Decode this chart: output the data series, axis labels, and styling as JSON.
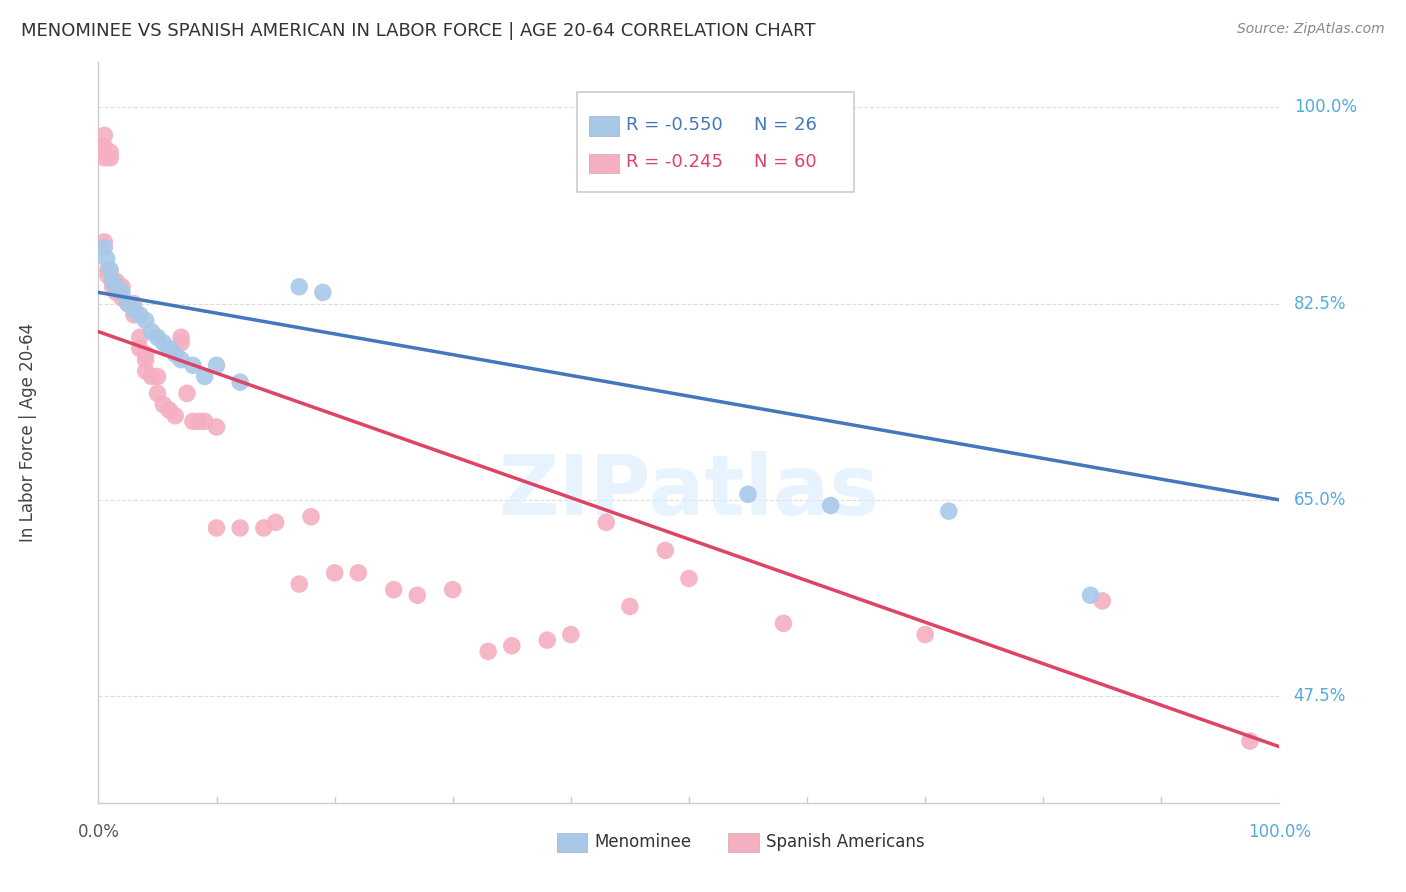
{
  "title": "MENOMINEE VS SPANISH AMERICAN IN LABOR FORCE | AGE 20-64 CORRELATION CHART",
  "source": "Source: ZipAtlas.com",
  "ylabel": "In Labor Force | Age 20-64",
  "right_yticks": [
    "100.0%",
    "82.5%",
    "65.0%",
    "47.5%"
  ],
  "right_ytick_vals": [
    1.0,
    0.825,
    0.65,
    0.475
  ],
  "legend_blue_label": "Menominee",
  "legend_pink_label": "Spanish Americans",
  "legend_blue_R": "R = -0.550",
  "legend_blue_N": "N = 26",
  "legend_pink_R": "R = -0.245",
  "legend_pink_N": "N = 60",
  "blue_color": "#a8c8e8",
  "pink_color": "#f4b0c0",
  "blue_line_color": "#4477bb",
  "pink_line_color": "#dd4466",
  "watermark": "ZIPatlas",
  "blue_line_x0": 0.0,
  "blue_line_y0": 0.835,
  "blue_line_x1": 1.0,
  "blue_line_y1": 0.65,
  "pink_line_x0": 0.0,
  "pink_line_y0": 0.8,
  "pink_line_x1": 1.0,
  "pink_line_y1": 0.43,
  "blue_x": [
    0.005,
    0.007,
    0.01,
    0.012,
    0.015,
    0.02,
    0.025,
    0.03,
    0.035,
    0.04,
    0.045,
    0.05,
    0.055,
    0.06,
    0.065,
    0.07,
    0.08,
    0.09,
    0.1,
    0.12,
    0.17,
    0.19,
    0.55,
    0.62,
    0.72,
    0.84
  ],
  "blue_y": [
    0.875,
    0.865,
    0.855,
    0.845,
    0.84,
    0.835,
    0.825,
    0.82,
    0.815,
    0.81,
    0.8,
    0.795,
    0.79,
    0.785,
    0.78,
    0.775,
    0.77,
    0.76,
    0.77,
    0.755,
    0.84,
    0.835,
    0.655,
    0.645,
    0.64,
    0.565
  ],
  "pink_x": [
    0.005,
    0.005,
    0.005,
    0.005,
    0.005,
    0.008,
    0.008,
    0.01,
    0.01,
    0.012,
    0.012,
    0.015,
    0.015,
    0.018,
    0.02,
    0.02,
    0.025,
    0.03,
    0.03,
    0.035,
    0.035,
    0.04,
    0.04,
    0.04,
    0.045,
    0.05,
    0.05,
    0.055,
    0.06,
    0.065,
    0.07,
    0.07,
    0.075,
    0.08,
    0.085,
    0.09,
    0.1,
    0.1,
    0.12,
    0.14,
    0.15,
    0.17,
    0.18,
    0.2,
    0.22,
    0.25,
    0.27,
    0.3,
    0.33,
    0.35,
    0.38,
    0.4,
    0.43,
    0.45,
    0.48,
    0.5,
    0.58,
    0.7,
    0.85,
    0.975
  ],
  "pink_y": [
    0.975,
    0.965,
    0.96,
    0.955,
    0.88,
    0.855,
    0.85,
    0.96,
    0.955,
    0.845,
    0.84,
    0.845,
    0.835,
    0.84,
    0.84,
    0.83,
    0.825,
    0.825,
    0.815,
    0.795,
    0.785,
    0.78,
    0.775,
    0.765,
    0.76,
    0.76,
    0.745,
    0.735,
    0.73,
    0.725,
    0.795,
    0.79,
    0.745,
    0.72,
    0.72,
    0.72,
    0.715,
    0.625,
    0.625,
    0.625,
    0.63,
    0.575,
    0.635,
    0.585,
    0.585,
    0.57,
    0.565,
    0.57,
    0.515,
    0.52,
    0.525,
    0.53,
    0.63,
    0.555,
    0.605,
    0.58,
    0.54,
    0.53,
    0.56,
    0.435
  ],
  "xlim": [
    0.0,
    1.0
  ],
  "ylim": [
    0.38,
    1.04
  ],
  "grid_color": "#dddddd",
  "spine_color": "#cccccc"
}
